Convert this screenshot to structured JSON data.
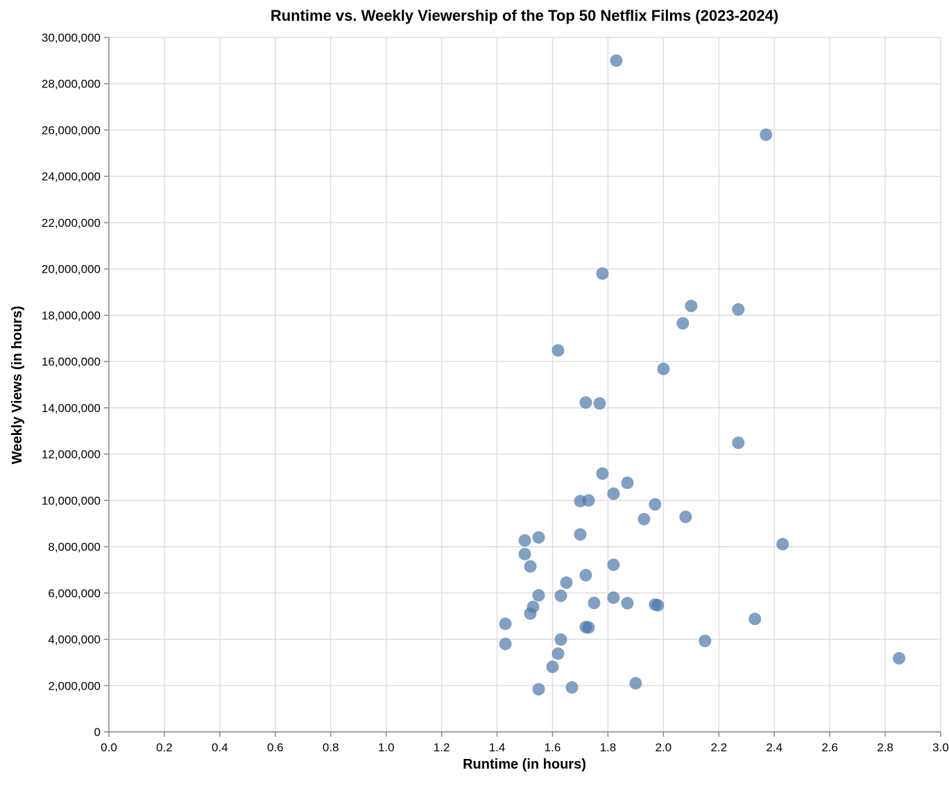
{
  "chart_data": {
    "type": "scatter",
    "title": "Runtime vs. Weekly Viewership of the Top 50 Netflix Films (2023-2024)",
    "xlabel": "Runtime (in hours)",
    "ylabel": "Weekly Views (in hours)",
    "xlim": [
      0,
      3.0
    ],
    "ylim": [
      0,
      30000000
    ],
    "x_ticks": [
      "0.0",
      "0.2",
      "0.4",
      "0.6",
      "0.8",
      "1.0",
      "1.2",
      "1.4",
      "1.6",
      "1.8",
      "2.0",
      "2.2",
      "2.4",
      "2.6",
      "2.8",
      "3.0"
    ],
    "y_ticks": [
      "0",
      "2,000,000",
      "4,000,000",
      "6,000,000",
      "8,000,000",
      "10,000,000",
      "12,000,000",
      "14,000,000",
      "16,000,000",
      "18,000,000",
      "20,000,000",
      "22,000,000",
      "24,000,000",
      "26,000,000",
      "28,000,000",
      "30,000,000"
    ],
    "grid": true,
    "color": "#4c78a8",
    "points": [
      {
        "x": 1.83,
        "y": 29000000
      },
      {
        "x": 2.37,
        "y": 25800000
      },
      {
        "x": 1.78,
        "y": 19800000
      },
      {
        "x": 2.1,
        "y": 18400000
      },
      {
        "x": 2.27,
        "y": 18250000
      },
      {
        "x": 2.07,
        "y": 17650000
      },
      {
        "x": 1.62,
        "y": 16480000
      },
      {
        "x": 2.0,
        "y": 15680000
      },
      {
        "x": 1.72,
        "y": 14230000
      },
      {
        "x": 1.77,
        "y": 14190000
      },
      {
        "x": 2.27,
        "y": 12490000
      },
      {
        "x": 1.78,
        "y": 11160000
      },
      {
        "x": 1.87,
        "y": 10760000
      },
      {
        "x": 1.82,
        "y": 10290000
      },
      {
        "x": 1.7,
        "y": 9970000
      },
      {
        "x": 1.73,
        "y": 10000000
      },
      {
        "x": 1.97,
        "y": 9830000
      },
      {
        "x": 1.93,
        "y": 9190000
      },
      {
        "x": 2.08,
        "y": 9290000
      },
      {
        "x": 1.7,
        "y": 8530000
      },
      {
        "x": 1.5,
        "y": 8270000
      },
      {
        "x": 1.55,
        "y": 8400000
      },
      {
        "x": 2.43,
        "y": 8110000
      },
      {
        "x": 1.5,
        "y": 7680000
      },
      {
        "x": 1.52,
        "y": 7150000
      },
      {
        "x": 1.82,
        "y": 7220000
      },
      {
        "x": 1.72,
        "y": 6770000
      },
      {
        "x": 1.65,
        "y": 6450000
      },
      {
        "x": 1.55,
        "y": 5900000
      },
      {
        "x": 1.63,
        "y": 5880000
      },
      {
        "x": 1.82,
        "y": 5800000
      },
      {
        "x": 1.75,
        "y": 5570000
      },
      {
        "x": 1.87,
        "y": 5560000
      },
      {
        "x": 1.97,
        "y": 5500000
      },
      {
        "x": 1.98,
        "y": 5470000
      },
      {
        "x": 1.53,
        "y": 5400000
      },
      {
        "x": 1.52,
        "y": 5110000
      },
      {
        "x": 2.33,
        "y": 4880000
      },
      {
        "x": 1.43,
        "y": 4670000
      },
      {
        "x": 1.72,
        "y": 4530000
      },
      {
        "x": 1.73,
        "y": 4510000
      },
      {
        "x": 1.63,
        "y": 3990000
      },
      {
        "x": 2.15,
        "y": 3930000
      },
      {
        "x": 1.43,
        "y": 3800000
      },
      {
        "x": 1.62,
        "y": 3380000
      },
      {
        "x": 2.85,
        "y": 3180000
      },
      {
        "x": 1.6,
        "y": 2810000
      },
      {
        "x": 1.9,
        "y": 2100000
      },
      {
        "x": 1.67,
        "y": 1920000
      },
      {
        "x": 1.55,
        "y": 1840000
      }
    ]
  }
}
